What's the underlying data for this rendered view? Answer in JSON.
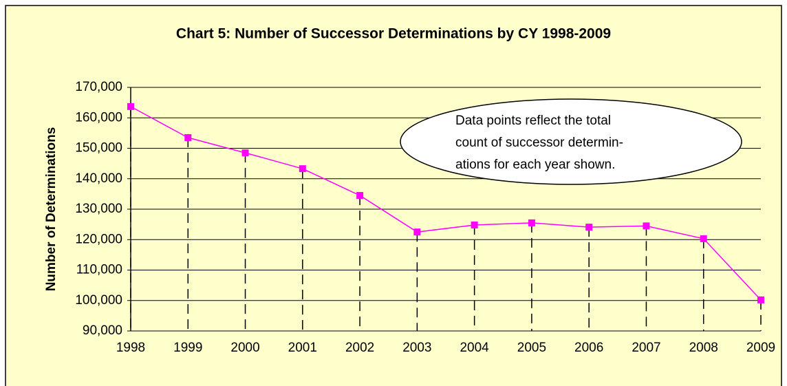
{
  "chart_data": {
    "type": "line",
    "title": "Chart 5: Number of Successor Determinations by CY 1998-2009",
    "y_label": "Number of Determinations",
    "categories": [
      "1998",
      "1999",
      "2000",
      "2001",
      "2002",
      "2003",
      "2004",
      "2005",
      "2006",
      "2007",
      "2008",
      "2009"
    ],
    "series": [
      {
        "name": "Successor Determinations",
        "color": "#ff00ff",
        "values": [
          163700,
          153500,
          148500,
          143300,
          134500,
          122500,
          124800,
          125500,
          124100,
          124500,
          120300,
          100200
        ]
      }
    ],
    "ylim": [
      90000,
      170000
    ],
    "yticks": [
      {
        "value": 90000,
        "label": "90,000"
      },
      {
        "value": 100000,
        "label": "100,000"
      },
      {
        "value": 110000,
        "label": "110,000"
      },
      {
        "value": 120000,
        "label": "120,000"
      },
      {
        "value": 130000,
        "label": "130,000"
      },
      {
        "value": 140000,
        "label": "140,000"
      },
      {
        "value": 150000,
        "label": "150,000"
      },
      {
        "value": 160000,
        "label": "160,000"
      },
      {
        "value": 170000,
        "label": "170,000"
      }
    ],
    "grid": true,
    "drop_lines": true,
    "annotation": [
      "Data points reflect the total",
      "count of successor determin-",
      "ations for each year shown."
    ]
  }
}
